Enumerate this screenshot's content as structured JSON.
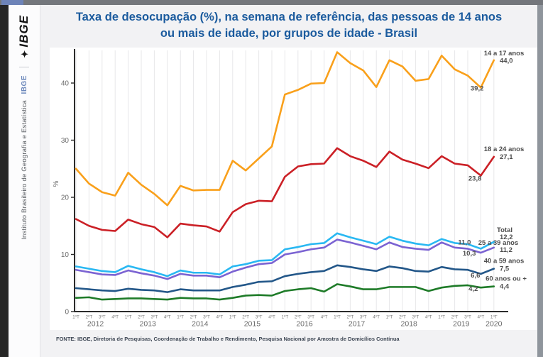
{
  "header": {
    "title": "Taxa de desocupação (%), na semana de referência, das pessoas de 14 anos ou mais de idade, por grupos de idade - Brasil"
  },
  "sidebar": {
    "logo_text": "IBGE",
    "logo_glyph": "✦",
    "brand_small": "IBGE",
    "institute_name": "Instituto Brasileiro de Geografia e Estatística"
  },
  "footer": {
    "source": "FONTE: IBGE, Diretoria de Pesquisas, Coordenação de Trabalho e Rendimento, Pesquisa Nacional por Amostra de Domicílios Contínua"
  },
  "chart_data": {
    "type": "line",
    "title": "Taxa de desocupação (%), na semana de referência, das pessoas de 14 anos ou mais de idade, por grupos de idade - Brasil",
    "xlabel": "",
    "ylabel": "%",
    "ylim": [
      0,
      46
    ],
    "yticks": [
      0,
      10,
      20,
      30,
      40
    ],
    "grid": "vertical-only",
    "legend_position": "right-inline-labels",
    "x_quarter_labels": [
      "1ºT",
      "2ºT",
      "3ºT",
      "4ºT"
    ],
    "years": [
      "2012",
      "2013",
      "2014",
      "2015",
      "2016",
      "2017",
      "2018",
      "2019",
      "2020"
    ],
    "x": [
      "1ºT 2012",
      "2ºT 2012",
      "3ºT 2012",
      "4ºT 2012",
      "1ºT 2013",
      "2ºT 2013",
      "3ºT 2013",
      "4ºT 2013",
      "1ºT 2014",
      "2ºT 2014",
      "3ºT 2014",
      "4ºT 2014",
      "1ºT 2015",
      "2ºT 2015",
      "3ºT 2015",
      "4ºT 2015",
      "1ºT 2016",
      "2ºT 2016",
      "3ºT 2016",
      "4ºT 2016",
      "1ºT 2017",
      "2ºT 2017",
      "3ºT 2017",
      "4ºT 2017",
      "1ºT 2018",
      "2ºT 2018",
      "3ºT 2018",
      "4ºT 2018",
      "1ºT 2019",
      "2ºT 2019",
      "3ºT 2019",
      "4ºT 2019",
      "1ºT 2020"
    ],
    "series": [
      {
        "name": "14 a 17 anos",
        "color": "#F9A01B",
        "label_end": "44,0",
        "label_prev": "39,2",
        "values": [
          25.0,
          22.4,
          20.9,
          20.3,
          24.3,
          22.2,
          20.6,
          18.6,
          22.0,
          21.2,
          21.3,
          21.3,
          26.4,
          24.7,
          26.8,
          28.9,
          38.0,
          38.8,
          39.9,
          40.0,
          45.4,
          43.5,
          42.2,
          39.3,
          44.0,
          42.9,
          40.4,
          40.7,
          44.8,
          42.4,
          41.3,
          39.2,
          44.0
        ]
      },
      {
        "name": "18 a 24 anos",
        "color": "#CB2026",
        "label_end": "27,1",
        "label_prev": "23,8",
        "values": [
          16.2,
          15.0,
          14.3,
          14.1,
          16.1,
          15.3,
          14.8,
          13.0,
          15.4,
          15.1,
          14.9,
          14.0,
          17.4,
          18.8,
          19.4,
          19.3,
          23.6,
          25.4,
          25.8,
          25.9,
          28.6,
          27.2,
          26.4,
          25.3,
          28.0,
          26.6,
          25.9,
          25.1,
          27.2,
          25.9,
          25.6,
          23.8,
          27.1
        ]
      },
      {
        "name": "Total",
        "color": "#29B8F2",
        "label_end": "12,2",
        "label_prev": "11,0",
        "values": [
          7.9,
          7.5,
          7.1,
          6.9,
          8.0,
          7.4,
          6.9,
          6.2,
          7.2,
          6.8,
          6.8,
          6.5,
          7.9,
          8.3,
          8.9,
          9.0,
          10.9,
          11.3,
          11.8,
          12.0,
          13.7,
          13.0,
          12.4,
          11.8,
          13.1,
          12.4,
          11.9,
          11.6,
          12.7,
          12.0,
          11.8,
          11.0,
          12.2
        ]
      },
      {
        "name": "25 a 39 anos",
        "color": "#7B63D2",
        "label_end": "11,2",
        "label_prev": "10,3",
        "values": [
          7.3,
          6.9,
          6.5,
          6.4,
          7.2,
          6.7,
          6.3,
          5.7,
          6.6,
          6.3,
          6.3,
          6.0,
          7.0,
          7.7,
          8.3,
          8.5,
          10.0,
          10.4,
          10.9,
          11.2,
          12.6,
          12.1,
          11.5,
          10.9,
          12.1,
          11.3,
          11.0,
          10.8,
          12.1,
          11.2,
          11.0,
          10.3,
          11.2
        ]
      },
      {
        "name": "40 a 59 anos",
        "color": "#235789",
        "label_end": "7,5",
        "label_prev": "6,6",
        "values": [
          4.1,
          3.9,
          3.7,
          3.6,
          4.0,
          3.8,
          3.7,
          3.4,
          3.9,
          3.7,
          3.7,
          3.7,
          4.3,
          4.7,
          5.2,
          5.3,
          6.2,
          6.6,
          6.9,
          7.1,
          8.1,
          7.8,
          7.4,
          7.1,
          7.9,
          7.6,
          7.1,
          7.0,
          7.8,
          7.4,
          7.3,
          6.6,
          7.5
        ]
      },
      {
        "name": "60 anos ou +",
        "color": "#1E7B28",
        "label_end": "4,4",
        "label_prev": "4,2",
        "values": [
          2.4,
          2.5,
          2.1,
          2.2,
          2.3,
          2.3,
          2.2,
          2.1,
          2.4,
          2.3,
          2.3,
          2.1,
          2.4,
          2.8,
          2.9,
          2.8,
          3.6,
          3.9,
          4.1,
          3.5,
          4.8,
          4.4,
          3.9,
          3.9,
          4.3,
          4.3,
          4.3,
          3.6,
          4.2,
          4.5,
          4.6,
          4.2,
          4.4
        ]
      }
    ]
  }
}
